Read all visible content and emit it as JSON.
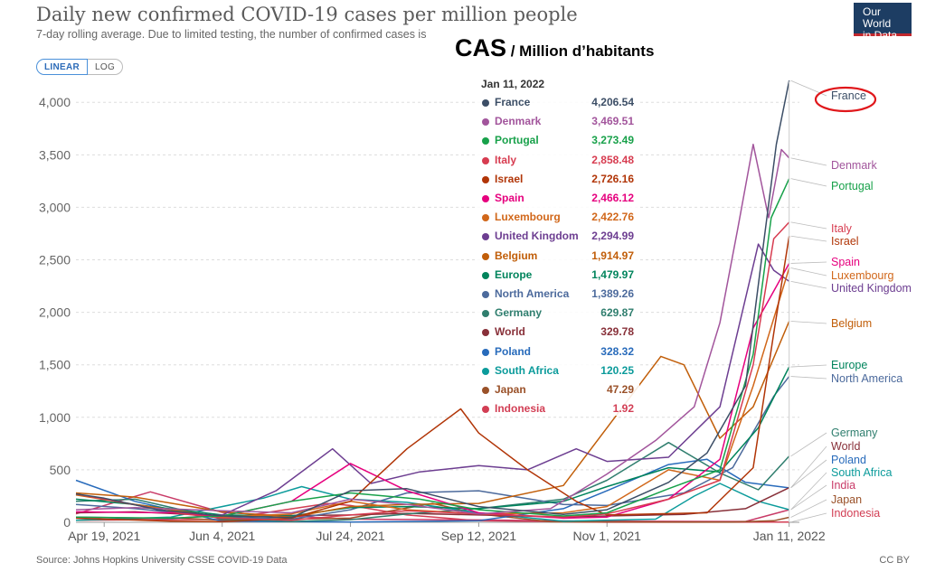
{
  "header": {
    "title": "Daily new confirmed COVID-19 cases per million people",
    "subtitle": "7-day rolling average. Due to limited testing, the number of confirmed cases is",
    "logo_line1": "Our World",
    "logo_line2": "in Data",
    "scale_linear": "LINEAR",
    "scale_log": "LOG"
  },
  "overlay": {
    "big": "CAS",
    "small": " / Million d’habitants"
  },
  "footer": {
    "source": "Source: Johns Hopkins University CSSE COVID-19 Data",
    "license": "CC BY"
  },
  "tooltip": {
    "date": "Jan 11, 2022"
  },
  "chart_data": {
    "type": "line",
    "title": "Daily new confirmed COVID-19 cases per million people",
    "ylim": [
      0,
      4200
    ],
    "y_ticks": [
      "0",
      "500",
      "1,000",
      "1,500",
      "2,000",
      "2,500",
      "3,000",
      "3,500",
      "4,000"
    ],
    "y_tick_values": [
      0,
      500,
      1000,
      1500,
      2000,
      2500,
      3000,
      3500,
      4000
    ],
    "x_tick_labels": [
      "Apr 19, 2021",
      "Jun 4, 2021",
      "Jul 24, 2021",
      "Sep 12, 2021",
      "Nov 1, 2021",
      "Jan 11, 2022"
    ],
    "x_tick_dates": [
      "2021-04-19",
      "2021-06-04",
      "2021-07-24",
      "2021-09-12",
      "2021-11-01",
      "2022-01-11"
    ],
    "grid": true,
    "series": [
      {
        "name": "France",
        "color": "#3c4e66",
        "display": "4,206.54",
        "points": [
          [
            "2021-04-08",
            270
          ],
          [
            "2021-04-19",
            230
          ],
          [
            "2021-05-10",
            120
          ],
          [
            "2021-06-04",
            60
          ],
          [
            "2021-07-01",
            45
          ],
          [
            "2021-07-24",
            300
          ],
          [
            "2021-08-15",
            320
          ],
          [
            "2021-09-12",
            150
          ],
          [
            "2021-10-15",
            75
          ],
          [
            "2021-11-01",
            120
          ],
          [
            "2021-11-25",
            380
          ],
          [
            "2021-12-10",
            660
          ],
          [
            "2021-12-25",
            1300
          ],
          [
            "2022-01-01",
            2650
          ],
          [
            "2022-01-06",
            3600
          ],
          [
            "2022-01-11",
            4206.54
          ]
        ]
      },
      {
        "name": "Denmark",
        "color": "#a2559c",
        "display": "3,469.51",
        "points": [
          [
            "2021-04-08",
            120
          ],
          [
            "2021-05-01",
            140
          ],
          [
            "2021-06-04",
            110
          ],
          [
            "2021-07-01",
            90
          ],
          [
            "2021-07-24",
            220
          ],
          [
            "2021-08-15",
            170
          ],
          [
            "2021-09-12",
            80
          ],
          [
            "2021-10-10",
            130
          ],
          [
            "2021-11-01",
            460
          ],
          [
            "2021-11-20",
            780
          ],
          [
            "2021-12-05",
            1100
          ],
          [
            "2021-12-15",
            1900
          ],
          [
            "2021-12-22",
            2800
          ],
          [
            "2021-12-28",
            3600
          ],
          [
            "2022-01-03",
            2900
          ],
          [
            "2022-01-08",
            3550
          ],
          [
            "2022-01-11",
            3469.51
          ]
        ]
      },
      {
        "name": "Portugal",
        "color": "#18a14a",
        "display": "3,273.49",
        "points": [
          [
            "2021-04-08",
            50
          ],
          [
            "2021-05-15",
            40
          ],
          [
            "2021-06-04",
            60
          ],
          [
            "2021-07-01",
            200
          ],
          [
            "2021-07-24",
            280
          ],
          [
            "2021-08-20",
            220
          ],
          [
            "2021-09-12",
            120
          ],
          [
            "2021-10-15",
            60
          ],
          [
            "2021-11-01",
            90
          ],
          [
            "2021-11-25",
            320
          ],
          [
            "2021-12-15",
            500
          ],
          [
            "2021-12-28",
            1600
          ],
          [
            "2022-01-04",
            2900
          ],
          [
            "2022-01-11",
            3273.49
          ]
        ]
      },
      {
        "name": "Italy",
        "color": "#d73c50",
        "display": "2,858.48",
        "points": [
          [
            "2021-04-08",
            270
          ],
          [
            "2021-04-19",
            220
          ],
          [
            "2021-05-20",
            80
          ],
          [
            "2021-06-04",
            40
          ],
          [
            "2021-07-01",
            20
          ],
          [
            "2021-07-24",
            70
          ],
          [
            "2021-08-15",
            110
          ],
          [
            "2021-09-12",
            80
          ],
          [
            "2021-10-15",
            50
          ],
          [
            "2021-11-01",
            80
          ],
          [
            "2021-11-25",
            220
          ],
          [
            "2021-12-15",
            400
          ],
          [
            "2021-12-28",
            1500
          ],
          [
            "2022-01-05",
            2700
          ],
          [
            "2022-01-11",
            2858.48
          ]
        ]
      },
      {
        "name": "Israel",
        "color": "#b13507",
        "display": "2,726.16",
        "points": [
          [
            "2021-04-08",
            40
          ],
          [
            "2021-05-15",
            10
          ],
          [
            "2021-06-04",
            5
          ],
          [
            "2021-07-01",
            40
          ],
          [
            "2021-07-24",
            200
          ],
          [
            "2021-08-15",
            700
          ],
          [
            "2021-09-05",
            1080
          ],
          [
            "2021-09-12",
            850
          ],
          [
            "2021-10-01",
            500
          ],
          [
            "2021-10-20",
            200
          ],
          [
            "2021-11-01",
            70
          ],
          [
            "2021-12-10",
            90
          ],
          [
            "2021-12-28",
            520
          ],
          [
            "2022-01-05",
            1800
          ],
          [
            "2022-01-11",
            2726.16
          ]
        ]
      },
      {
        "name": "Spain",
        "color": "#e6007e",
        "display": "2,466.12",
        "points": [
          [
            "2021-04-08",
            100
          ],
          [
            "2021-05-15",
            90
          ],
          [
            "2021-06-04",
            60
          ],
          [
            "2021-07-01",
            200
          ],
          [
            "2021-07-24",
            560
          ],
          [
            "2021-08-15",
            300
          ],
          [
            "2021-09-12",
            90
          ],
          [
            "2021-10-15",
            40
          ],
          [
            "2021-11-01",
            50
          ],
          [
            "2021-11-25",
            220
          ],
          [
            "2021-12-15",
            600
          ],
          [
            "2021-12-28",
            1850
          ],
          [
            "2022-01-11",
            2466.12
          ]
        ]
      },
      {
        "name": "Luxembourg",
        "color": "#d1671a",
        "display": "2,422.76",
        "points": [
          [
            "2021-04-08",
            260
          ],
          [
            "2021-05-01",
            170
          ],
          [
            "2021-06-04",
            50
          ],
          [
            "2021-07-01",
            80
          ],
          [
            "2021-07-24",
            200
          ],
          [
            "2021-08-15",
            120
          ],
          [
            "2021-09-12",
            80
          ],
          [
            "2021-10-15",
            90
          ],
          [
            "2021-11-01",
            150
          ],
          [
            "2021-11-25",
            500
          ],
          [
            "2021-12-15",
            400
          ],
          [
            "2021-12-28",
            1300
          ],
          [
            "2022-01-11",
            2422.76
          ]
        ]
      },
      {
        "name": "United Kingdom",
        "color": "#6d3e91",
        "display": "2,294.99",
        "points": [
          [
            "2021-04-08",
            50
          ],
          [
            "2021-05-15",
            35
          ],
          [
            "2021-06-04",
            70
          ],
          [
            "2021-06-25",
            300
          ],
          [
            "2021-07-17",
            700
          ],
          [
            "2021-08-01",
            370
          ],
          [
            "2021-08-20",
            480
          ],
          [
            "2021-09-12",
            540
          ],
          [
            "2021-10-01",
            500
          ],
          [
            "2021-10-20",
            700
          ],
          [
            "2021-11-01",
            580
          ],
          [
            "2021-11-25",
            620
          ],
          [
            "2021-12-15",
            1100
          ],
          [
            "2021-12-30",
            2650
          ],
          [
            "2022-01-05",
            2400
          ],
          [
            "2022-01-11",
            2294.99
          ]
        ]
      },
      {
        "name": "Belgium",
        "color": "#c15e09",
        "display": "1,914.97",
        "points": [
          [
            "2021-04-08",
            280
          ],
          [
            "2021-05-01",
            240
          ],
          [
            "2021-06-04",
            100
          ],
          [
            "2021-07-01",
            50
          ],
          [
            "2021-07-24",
            150
          ],
          [
            "2021-08-15",
            170
          ],
          [
            "2021-09-12",
            180
          ],
          [
            "2021-10-15",
            350
          ],
          [
            "2021-11-01",
            900
          ],
          [
            "2021-11-22",
            1580
          ],
          [
            "2021-12-01",
            1500
          ],
          [
            "2021-12-15",
            800
          ],
          [
            "2021-12-28",
            1100
          ],
          [
            "2022-01-11",
            1914.97
          ]
        ]
      },
      {
        "name": "Europe",
        "color": "#00845c",
        "display": "1,479.97",
        "points": [
          [
            "2021-04-08",
            220
          ],
          [
            "2021-05-01",
            170
          ],
          [
            "2021-06-04",
            70
          ],
          [
            "2021-07-01",
            60
          ],
          [
            "2021-07-24",
            140
          ],
          [
            "2021-08-15",
            150
          ],
          [
            "2021-09-12",
            130
          ],
          [
            "2021-10-15",
            200
          ],
          [
            "2021-11-01",
            340
          ],
          [
            "2021-11-25",
            520
          ],
          [
            "2021-12-15",
            480
          ],
          [
            "2021-12-30",
            900
          ],
          [
            "2022-01-11",
            1479.97
          ]
        ]
      },
      {
        "name": "North America",
        "color": "#4c6a9c",
        "display": "1,389.26",
        "points": [
          [
            "2021-04-08",
            170
          ],
          [
            "2021-05-01",
            130
          ],
          [
            "2021-06-04",
            50
          ],
          [
            "2021-07-01",
            30
          ],
          [
            "2021-07-24",
            120
          ],
          [
            "2021-08-15",
            280
          ],
          [
            "2021-09-12",
            300
          ],
          [
            "2021-10-15",
            170
          ],
          [
            "2021-11-01",
            160
          ],
          [
            "2021-12-01",
            280
          ],
          [
            "2021-12-20",
            520
          ],
          [
            "2022-01-05",
            1200
          ],
          [
            "2022-01-11",
            1389.26
          ]
        ]
      },
      {
        "name": "Germany",
        "color": "#2f7e6e",
        "display": "629.87",
        "points": [
          [
            "2021-04-08",
            200
          ],
          [
            "2021-05-01",
            220
          ],
          [
            "2021-06-04",
            30
          ],
          [
            "2021-07-01",
            8
          ],
          [
            "2021-07-24",
            25
          ],
          [
            "2021-08-15",
            80
          ],
          [
            "2021-09-12",
            130
          ],
          [
            "2021-10-15",
            220
          ],
          [
            "2021-11-01",
            400
          ],
          [
            "2021-11-25",
            760
          ],
          [
            "2021-12-15",
            470
          ],
          [
            "2021-12-30",
            310
          ],
          [
            "2022-01-11",
            629.87
          ]
        ]
      },
      {
        "name": "World",
        "color": "#883039",
        "display": "329.78",
        "points": [
          [
            "2021-04-08",
            90
          ],
          [
            "2021-05-01",
            100
          ],
          [
            "2021-06-04",
            60
          ],
          [
            "2021-07-24",
            70
          ],
          [
            "2021-08-15",
            85
          ],
          [
            "2021-09-12",
            70
          ],
          [
            "2021-10-15",
            52
          ],
          [
            "2021-11-01",
            60
          ],
          [
            "2021-12-01",
            75
          ],
          [
            "2021-12-25",
            130
          ],
          [
            "2022-01-11",
            329.78
          ]
        ]
      },
      {
        "name": "Poland",
        "color": "#286bbb",
        "display": "328.32",
        "points": [
          [
            "2021-04-08",
            400
          ],
          [
            "2021-05-01",
            200
          ],
          [
            "2021-06-04",
            10
          ],
          [
            "2021-07-24",
            3
          ],
          [
            "2021-09-12",
            15
          ],
          [
            "2021-10-15",
            130
          ],
          [
            "2021-11-01",
            300
          ],
          [
            "2021-11-25",
            550
          ],
          [
            "2021-12-10",
            600
          ],
          [
            "2021-12-25",
            380
          ],
          [
            "2022-01-11",
            328.32
          ]
        ]
      },
      {
        "name": "South Africa",
        "color": "#0c9b9b",
        "display": "120.25",
        "points": [
          [
            "2021-04-08",
            20
          ],
          [
            "2021-05-15",
            50
          ],
          [
            "2021-06-20",
            230
          ],
          [
            "2021-07-05",
            340
          ],
          [
            "2021-07-24",
            220
          ],
          [
            "2021-08-15",
            190
          ],
          [
            "2021-09-12",
            90
          ],
          [
            "2021-10-15",
            10
          ],
          [
            "2021-11-20",
            30
          ],
          [
            "2021-12-05",
            250
          ],
          [
            "2021-12-15",
            370
          ],
          [
            "2021-12-30",
            200
          ],
          [
            "2022-01-11",
            120.25
          ]
        ]
      },
      {
        "name": "Japan",
        "color": "#9a5129",
        "display": "47.29",
        "points": [
          [
            "2021-04-08",
            20
          ],
          [
            "2021-05-15",
            45
          ],
          [
            "2021-06-04",
            20
          ],
          [
            "2021-07-24",
            40
          ],
          [
            "2021-08-25",
            180
          ],
          [
            "2021-09-12",
            80
          ],
          [
            "2021-10-10",
            5
          ],
          [
            "2021-12-20",
            2
          ],
          [
            "2022-01-05",
            15
          ],
          [
            "2022-01-11",
            47.29
          ]
        ]
      },
      {
        "name": "India",
        "color": "#c93b68",
        "display": "",
        "points": [
          [
            "2021-04-08",
            80
          ],
          [
            "2021-05-07",
            290
          ],
          [
            "2021-06-04",
            95
          ],
          [
            "2021-07-24",
            30
          ],
          [
            "2021-09-12",
            22
          ],
          [
            "2021-11-01",
            10
          ],
          [
            "2021-12-25",
            8
          ],
          [
            "2022-01-11",
            120
          ]
        ]
      },
      {
        "name": "Indonesia",
        "color": "#d23e54",
        "display": "1.92",
        "points": [
          [
            "2021-04-08",
            20
          ],
          [
            "2021-06-04",
            28
          ],
          [
            "2021-07-15",
            180
          ],
          [
            "2021-07-24",
            160
          ],
          [
            "2021-08-15",
            70
          ],
          [
            "2021-09-12",
            15
          ],
          [
            "2021-11-01",
            1
          ],
          [
            "2022-01-11",
            1.92
          ]
        ]
      }
    ],
    "end_labels": [
      "France",
      "Denmark",
      "Portugal",
      "Italy",
      "Israel",
      "Spain",
      "Luxembourg",
      "United Kingdom",
      "Belgium",
      "Europe",
      "North America",
      "Germany",
      "World",
      "Poland",
      "South Africa",
      "India",
      "Japan",
      "Indonesia"
    ]
  }
}
